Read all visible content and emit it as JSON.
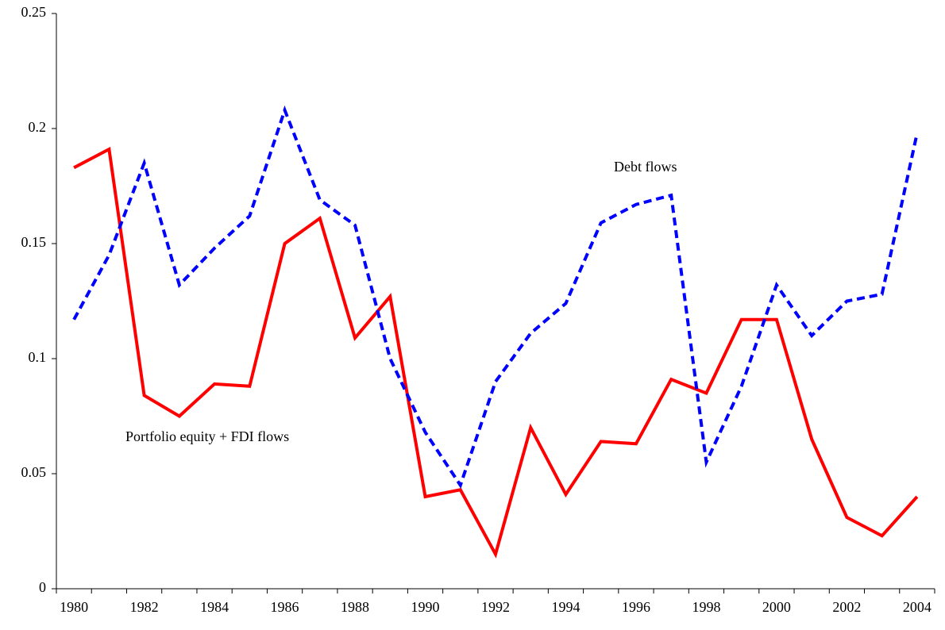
{
  "chart_data": {
    "type": "line",
    "categories": [
      "1980",
      null,
      "1982",
      null,
      "1984",
      null,
      "1986",
      null,
      "1988",
      null,
      "1990",
      null,
      "1992",
      null,
      "1994",
      null,
      "1996",
      null,
      "1998",
      null,
      "2000",
      null,
      "2002",
      null,
      "2004"
    ],
    "series": [
      {
        "color": "#ff0000",
        "dash": false,
        "values": [
          0.183,
          0.191,
          0.084,
          0.075,
          0.089,
          0.088,
          0.15,
          0.161,
          0.109,
          0.127,
          0.04,
          0.043,
          0.015,
          0.07,
          0.041,
          0.064,
          0.063,
          0.091,
          0.085,
          0.117,
          0.117,
          0.065,
          0.031,
          0.023,
          0.04
        ]
      },
      {
        "color": "#0000ff",
        "dash": true,
        "values": [
          0.117,
          0.145,
          0.185,
          0.132,
          0.148,
          0.162,
          0.208,
          0.169,
          0.158,
          0.1,
          0.068,
          0.045,
          0.09,
          0.111,
          0.124,
          0.159,
          0.167,
          0.171,
          0.055,
          0.088,
          0.132,
          0.11,
          0.125,
          0.128,
          0.198
        ]
      }
    ],
    "annotations": [
      "Debt flows",
      "Portfolio equity + FDI flows"
    ],
    "ylim": [
      0,
      0.25
    ],
    "yticks": [
      0,
      0.05,
      0.1,
      0.15,
      0.2,
      0.25
    ],
    "grid": false
  }
}
